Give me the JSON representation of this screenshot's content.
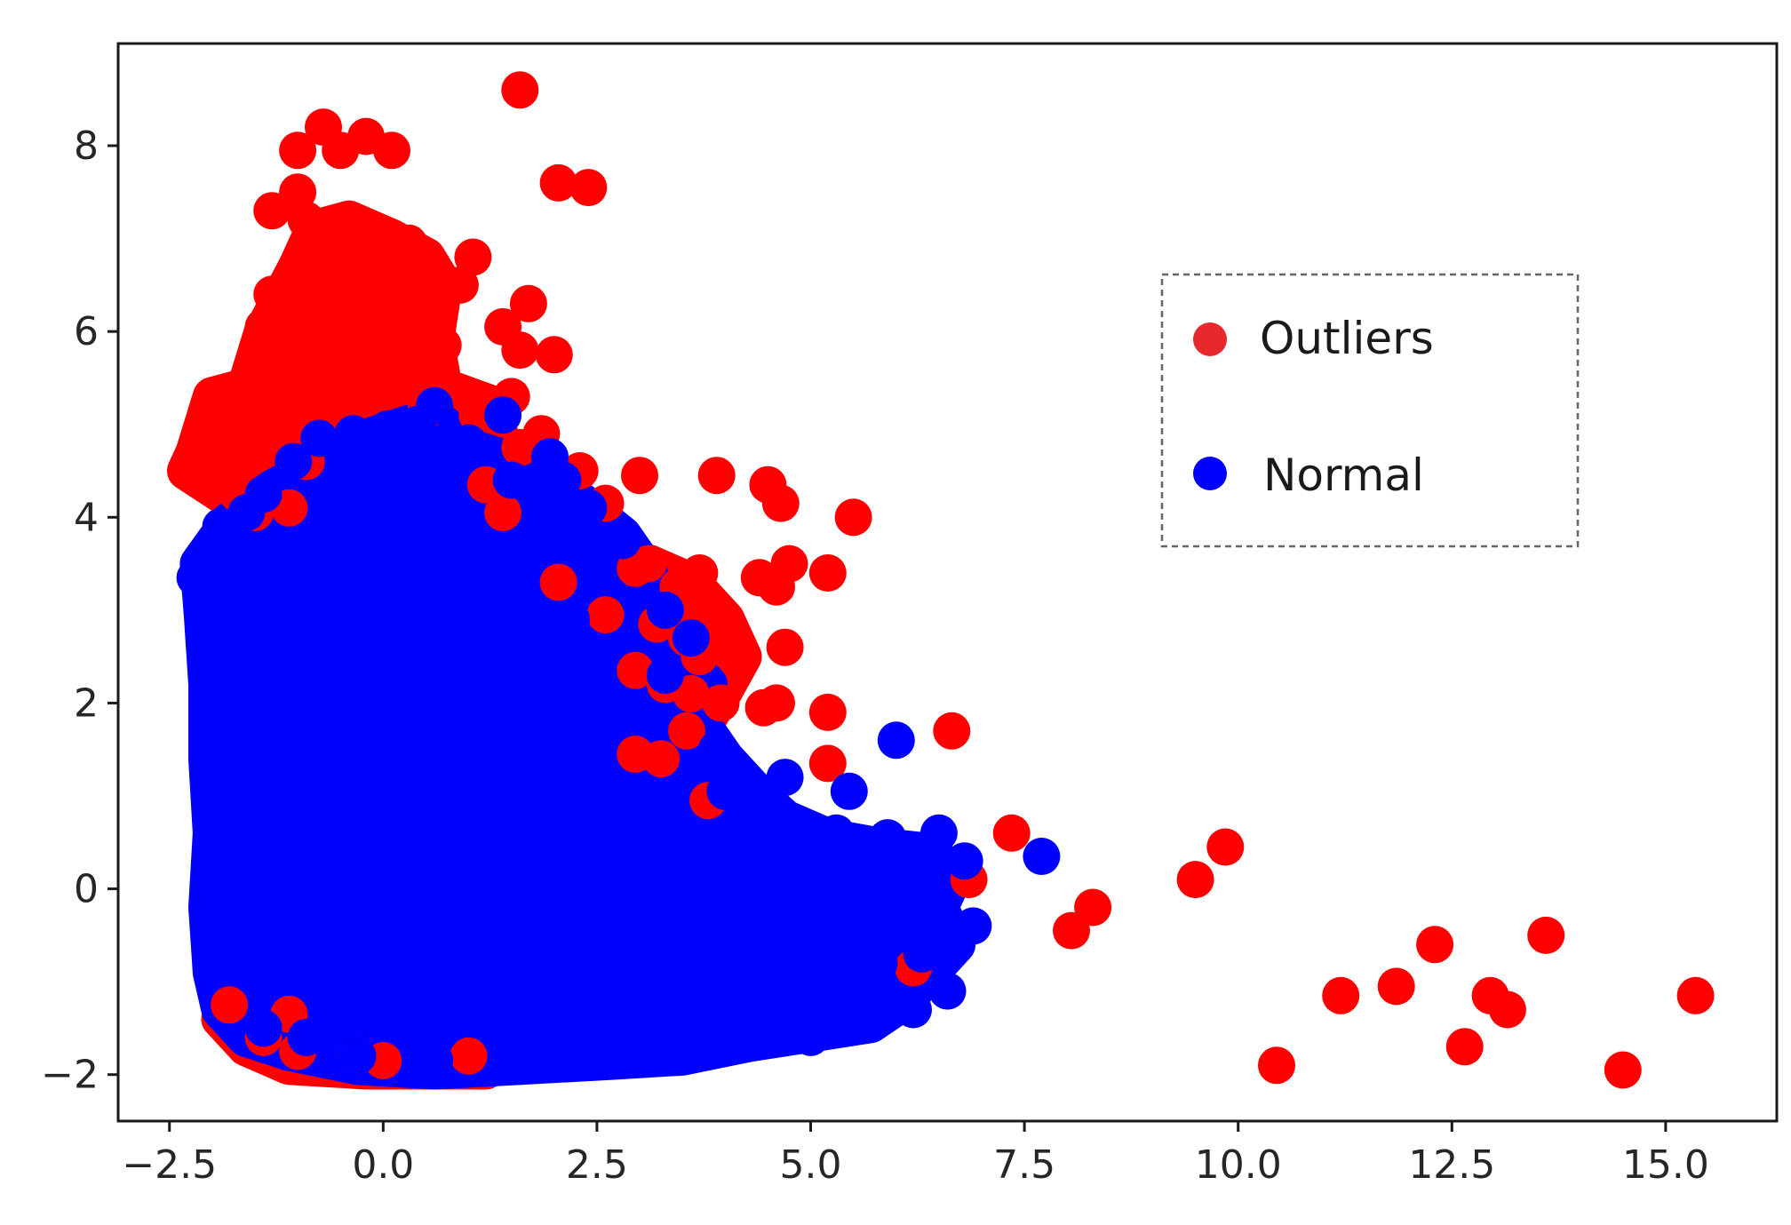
{
  "chart_data": {
    "type": "scatter",
    "title": "",
    "xlabel": "",
    "ylabel": "",
    "xlim": [
      -3.1,
      16.3
    ],
    "ylim": [
      -2.5,
      9.1
    ],
    "x_ticks": [
      -2.5,
      0.0,
      2.5,
      5.0,
      7.5,
      10.0,
      12.5,
      15.0
    ],
    "x_tick_labels": [
      "−2.5",
      "0.0",
      "2.5",
      "5.0",
      "7.5",
      "10.0",
      "12.5",
      "15.0"
    ],
    "y_ticks": [
      -2,
      0,
      2,
      4,
      6,
      8
    ],
    "y_tick_labels": [
      "−2",
      "0",
      "2",
      "4",
      "6",
      "8"
    ],
    "grid": false,
    "legend_position": "upper-right",
    "legend_frame": "dashed",
    "series": [
      {
        "name": "Outliers",
        "color": "#ff0000",
        "legend_color": "#e8282c",
        "points": [
          [
            1.6,
            8.6
          ],
          [
            -0.7,
            8.2
          ],
          [
            -0.2,
            8.1
          ],
          [
            -0.5,
            7.95
          ],
          [
            -1.0,
            7.95
          ],
          [
            0.1,
            7.95
          ],
          [
            2.05,
            7.6
          ],
          [
            2.4,
            7.55
          ],
          [
            -1.0,
            7.5
          ],
          [
            -1.3,
            7.3
          ],
          [
            -0.9,
            7.2
          ],
          [
            -0.4,
            7.1
          ],
          [
            0.3,
            6.95
          ],
          [
            1.05,
            6.8
          ],
          [
            -0.7,
            6.7
          ],
          [
            -0.1,
            6.6
          ],
          [
            0.6,
            6.5
          ],
          [
            0.9,
            6.5
          ],
          [
            -1.3,
            6.4
          ],
          [
            -0.9,
            6.35
          ],
          [
            1.7,
            6.3
          ],
          [
            0.4,
            6.3
          ],
          [
            -0.5,
            6.15
          ],
          [
            1.4,
            6.05
          ],
          [
            -1.4,
            6.05
          ],
          [
            0.0,
            6.0
          ],
          [
            0.7,
            5.85
          ],
          [
            1.6,
            5.8
          ],
          [
            2.0,
            5.75
          ],
          [
            -0.8,
            5.75
          ],
          [
            0.25,
            5.6
          ],
          [
            -1.1,
            5.55
          ],
          [
            -0.5,
            5.45
          ],
          [
            1.5,
            5.3
          ],
          [
            -1.7,
            5.35
          ],
          [
            -2.0,
            5.2
          ],
          [
            0.5,
            5.15
          ],
          [
            -0.7,
            5.05
          ],
          [
            1.1,
            5.1
          ],
          [
            -1.5,
            4.95
          ],
          [
            -2.1,
            4.95
          ],
          [
            1.85,
            4.9
          ],
          [
            -1.2,
            4.8
          ],
          [
            -2.15,
            4.75
          ],
          [
            1.6,
            4.75
          ],
          [
            -0.9,
            4.6
          ],
          [
            2.3,
            4.5
          ],
          [
            3.0,
            4.45
          ],
          [
            3.9,
            4.45
          ],
          [
            4.5,
            4.35
          ],
          [
            1.2,
            4.35
          ],
          [
            -1.7,
            4.25
          ],
          [
            4.65,
            4.15
          ],
          [
            -1.1,
            4.1
          ],
          [
            2.6,
            4.15
          ],
          [
            5.5,
            4.0
          ],
          [
            -1.5,
            4.05
          ],
          [
            1.4,
            4.05
          ],
          [
            4.75,
            3.5
          ],
          [
            3.1,
            3.5
          ],
          [
            3.7,
            3.4
          ],
          [
            5.2,
            3.4
          ],
          [
            4.4,
            3.35
          ],
          [
            2.95,
            3.45
          ],
          [
            4.6,
            3.25
          ],
          [
            2.05,
            3.3
          ],
          [
            3.45,
            3.25
          ],
          [
            3.9,
            2.95
          ],
          [
            2.6,
            2.95
          ],
          [
            3.2,
            2.85
          ],
          [
            3.55,
            2.7
          ],
          [
            4.0,
            2.6
          ],
          [
            4.7,
            2.6
          ],
          [
            3.7,
            2.5
          ],
          [
            2.95,
            2.35
          ],
          [
            3.3,
            2.2
          ],
          [
            3.6,
            2.1
          ],
          [
            4.6,
            2.0
          ],
          [
            3.95,
            2.0
          ],
          [
            4.45,
            1.95
          ],
          [
            5.2,
            1.9
          ],
          [
            3.55,
            1.7
          ],
          [
            6.65,
            1.7
          ],
          [
            2.95,
            1.45
          ],
          [
            3.25,
            1.4
          ],
          [
            5.2,
            1.35
          ],
          [
            3.8,
            0.95
          ],
          [
            7.35,
            0.6
          ],
          [
            6.85,
            0.1
          ],
          [
            9.85,
            0.45
          ],
          [
            9.5,
            0.1
          ],
          [
            8.3,
            -0.2
          ],
          [
            8.05,
            -0.45
          ],
          [
            13.6,
            -0.5
          ],
          [
            12.3,
            -0.6
          ],
          [
            6.2,
            -0.85
          ],
          [
            11.85,
            -1.05
          ],
          [
            11.2,
            -1.15
          ],
          [
            12.95,
            -1.15
          ],
          [
            15.35,
            -1.15
          ],
          [
            13.15,
            -1.3
          ],
          [
            -1.8,
            -1.25
          ],
          [
            -1.1,
            -1.35
          ],
          [
            -1.4,
            -1.6
          ],
          [
            -1.0,
            -1.75
          ],
          [
            12.65,
            -1.7
          ],
          [
            -0.3,
            -1.8
          ],
          [
            10.45,
            -1.9
          ],
          [
            14.5,
            -1.95
          ],
          [
            0.0,
            -1.85
          ],
          [
            1.0,
            -1.8
          ]
        ]
      },
      {
        "name": "Normal",
        "color": "#0000ff",
        "legend_color": "#0000ff",
        "points": [
          [
            0.6,
            5.2
          ],
          [
            1.4,
            5.1
          ],
          [
            0.4,
            5.0
          ],
          [
            0.05,
            4.95
          ],
          [
            -0.35,
            4.9
          ],
          [
            1.0,
            4.8
          ],
          [
            -0.75,
            4.85
          ],
          [
            1.95,
            4.65
          ],
          [
            -1.05,
            4.6
          ],
          [
            2.1,
            4.4
          ],
          [
            0.3,
            4.5
          ],
          [
            1.5,
            4.4
          ],
          [
            -1.4,
            4.25
          ],
          [
            2.4,
            4.1
          ],
          [
            -1.6,
            4.05
          ],
          [
            -1.9,
            3.9
          ],
          [
            2.8,
            3.75
          ],
          [
            -2.2,
            3.35
          ],
          [
            -2.1,
            3.1
          ],
          [
            3.3,
            3.0
          ],
          [
            -2.0,
            2.8
          ],
          [
            3.6,
            2.7
          ],
          [
            2.2,
            2.9
          ],
          [
            -1.9,
            2.3
          ],
          [
            3.3,
            2.3
          ],
          [
            -2.0,
            1.8
          ],
          [
            3.9,
            1.5
          ],
          [
            -1.8,
            1.3
          ],
          [
            4.0,
            1.05
          ],
          [
            4.7,
            1.2
          ],
          [
            5.45,
            1.05
          ],
          [
            6.0,
            1.6
          ],
          [
            4.3,
            0.85
          ],
          [
            -1.8,
            0.8
          ],
          [
            5.3,
            0.6
          ],
          [
            4.6,
            0.65
          ],
          [
            5.9,
            0.55
          ],
          [
            6.5,
            0.6
          ],
          [
            6.3,
            0.35
          ],
          [
            7.7,
            0.35
          ],
          [
            6.8,
            0.3
          ],
          [
            5.2,
            0.25
          ],
          [
            4.1,
            0.35
          ],
          [
            -1.9,
            0.25
          ],
          [
            5.7,
            0.0
          ],
          [
            6.4,
            0.05
          ],
          [
            6.0,
            -0.15
          ],
          [
            -1.95,
            -0.3
          ],
          [
            6.7,
            -0.45
          ],
          [
            6.9,
            -0.4
          ],
          [
            5.5,
            -0.45
          ],
          [
            6.3,
            -0.7
          ],
          [
            4.5,
            -0.6
          ],
          [
            -1.9,
            -0.85
          ],
          [
            5.8,
            -0.8
          ],
          [
            6.6,
            -1.1
          ],
          [
            6.2,
            -1.3
          ],
          [
            5.4,
            -1.3
          ],
          [
            4.7,
            -1.5
          ],
          [
            3.9,
            -1.55
          ],
          [
            -1.4,
            -1.5
          ],
          [
            -0.9,
            -1.6
          ],
          [
            3.2,
            -1.8
          ],
          [
            2.5,
            -1.75
          ],
          [
            1.6,
            -1.8
          ],
          [
            0.6,
            -1.85
          ],
          [
            -0.3,
            -1.8
          ],
          [
            -0.6,
            -1.5
          ],
          [
            1.9,
            -1.7
          ],
          [
            4.2,
            -1.6
          ],
          [
            5.0,
            -1.6
          ],
          [
            5.9,
            -1.3
          ]
        ]
      }
    ],
    "blobs": [
      {
        "series": "Outliers",
        "outline": [
          [
            -2.2,
            4.7
          ],
          [
            -2.0,
            5.3
          ],
          [
            -1.6,
            5.4
          ],
          [
            -1.4,
            6.0
          ],
          [
            -1.0,
            6.7
          ],
          [
            -0.8,
            7.1
          ],
          [
            -0.4,
            7.2
          ],
          [
            0.1,
            7.0
          ],
          [
            0.5,
            6.8
          ],
          [
            0.7,
            6.5
          ],
          [
            0.6,
            5.9
          ],
          [
            0.7,
            5.4
          ],
          [
            1.3,
            5.2
          ],
          [
            1.4,
            4.6
          ],
          [
            1.3,
            4.2
          ],
          [
            0.5,
            4.3
          ],
          [
            -0.4,
            4.3
          ],
          [
            -1.3,
            4.1
          ],
          [
            -1.8,
            4.2
          ],
          [
            -2.3,
            4.5
          ]
        ]
      },
      {
        "series": "Outliers",
        "outline": [
          [
            2.5,
            3.6
          ],
          [
            3.1,
            3.5
          ],
          [
            3.6,
            3.3
          ],
          [
            4.0,
            2.9
          ],
          [
            4.2,
            2.5
          ],
          [
            3.9,
            2.0
          ],
          [
            3.7,
            1.7
          ],
          [
            3.4,
            1.9
          ],
          [
            3.0,
            2.2
          ],
          [
            2.7,
            2.8
          ],
          [
            2.4,
            3.2
          ]
        ]
      },
      {
        "series": "Outliers",
        "outline": [
          [
            -1.8,
            -1.1
          ],
          [
            -1.0,
            -1.2
          ],
          [
            -0.4,
            -1.5
          ],
          [
            0.2,
            -1.7
          ],
          [
            1.2,
            -1.7
          ],
          [
            1.2,
            -1.95
          ],
          [
            -0.2,
            -1.95
          ],
          [
            -1.1,
            -1.9
          ],
          [
            -1.6,
            -1.7
          ],
          [
            -1.9,
            -1.4
          ]
        ]
      },
      {
        "series": "Normal",
        "outline": [
          [
            -2.15,
            3.5
          ],
          [
            -1.8,
            3.95
          ],
          [
            -1.3,
            4.3
          ],
          [
            -0.7,
            4.6
          ],
          [
            -0.2,
            4.85
          ],
          [
            0.3,
            5.0
          ],
          [
            0.7,
            5.0
          ],
          [
            1.0,
            4.75
          ],
          [
            1.5,
            4.6
          ],
          [
            2.0,
            4.4
          ],
          [
            2.4,
            4.1
          ],
          [
            2.8,
            3.8
          ],
          [
            3.1,
            3.4
          ],
          [
            3.0,
            3.0
          ],
          [
            3.4,
            2.6
          ],
          [
            3.8,
            2.2
          ],
          [
            3.7,
            1.8
          ],
          [
            4.0,
            1.4
          ],
          [
            4.4,
            1.0
          ],
          [
            4.7,
            0.75
          ],
          [
            5.2,
            0.55
          ],
          [
            5.8,
            0.45
          ],
          [
            6.3,
            0.4
          ],
          [
            6.7,
            0.2
          ],
          [
            6.5,
            -0.2
          ],
          [
            6.7,
            -0.6
          ],
          [
            6.4,
            -0.9
          ],
          [
            6.1,
            -1.2
          ],
          [
            5.7,
            -1.45
          ],
          [
            5.0,
            -1.55
          ],
          [
            4.3,
            -1.65
          ],
          [
            3.5,
            -1.8
          ],
          [
            2.6,
            -1.85
          ],
          [
            1.6,
            -1.9
          ],
          [
            0.6,
            -1.95
          ],
          [
            -0.3,
            -1.9
          ],
          [
            -1.1,
            -1.75
          ],
          [
            -1.6,
            -1.6
          ],
          [
            -1.9,
            -1.3
          ],
          [
            -2.0,
            -0.9
          ],
          [
            -2.05,
            -0.2
          ],
          [
            -2.0,
            0.6
          ],
          [
            -2.05,
            1.4
          ],
          [
            -2.05,
            2.2
          ],
          [
            -2.1,
            2.9
          ]
        ]
      }
    ]
  }
}
